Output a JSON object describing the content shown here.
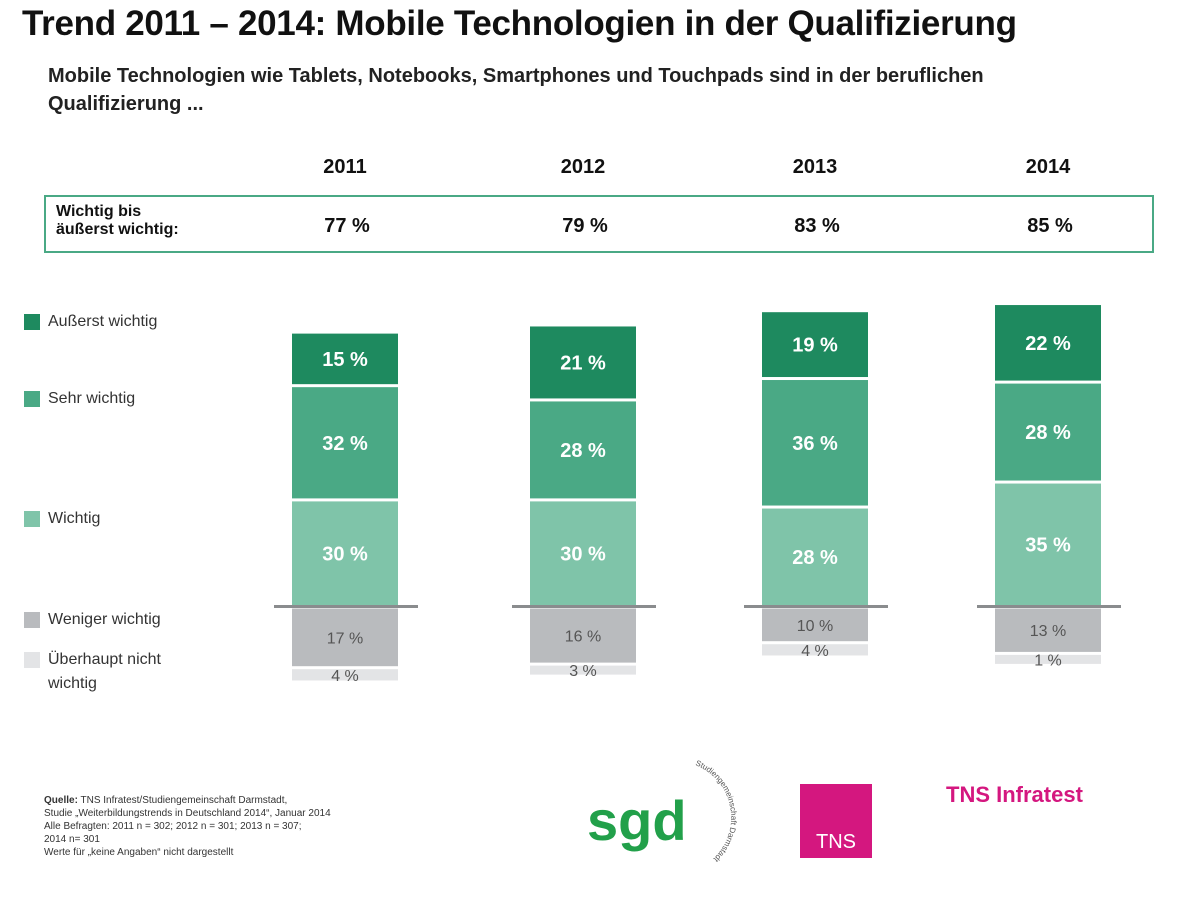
{
  "title": "Trend 2011 – 2014: Mobile Technologien in der Qualifizierung",
  "subtitle": "Mobile Technologien wie Tablets, Notebooks, Smartphones und Touchpads sind in der beruflichen Qualifizierung ...",
  "summary": {
    "label_line1": "Wichtig bis",
    "label_line2": "äußerst wichtig:",
    "values": [
      "77 %",
      "79 %",
      "83 %",
      "85 %"
    ]
  },
  "chart_data": {
    "type": "bar",
    "stacked": true,
    "categories": [
      "2011",
      "2012",
      "2013",
      "2014"
    ],
    "series": [
      {
        "name": "Äußerst wichtig",
        "values": [
          15,
          21,
          19,
          22
        ],
        "color": "#1e8a5f",
        "side": "positive"
      },
      {
        "name": "Sehr wichtig",
        "values": [
          32,
          28,
          36,
          28
        ],
        "color": "#4aa985",
        "side": "positive"
      },
      {
        "name": "Wichtig",
        "values": [
          30,
          30,
          28,
          35
        ],
        "color": "#7fc4a9",
        "side": "positive"
      },
      {
        "name": "Weniger wichtig",
        "values": [
          17,
          16,
          10,
          13
        ],
        "color": "#b9bbbe",
        "side": "negative"
      },
      {
        "name": "Überhaupt nicht wichtig",
        "values": [
          4,
          3,
          4,
          1
        ],
        "color": "#e3e4e6",
        "side": "negative"
      }
    ],
    "unit": "%",
    "legend_placement": "left"
  },
  "legend_labels": [
    "Außerst wichtig",
    "Sehr wichtig",
    "Wichtig",
    "Weniger wichtig",
    "Überhaupt nicht wichtig"
  ],
  "source": {
    "line1_bold": "Quelle:",
    "line1": " TNS Infratest/Studiengemeinschaft Darmstadt,",
    "line2": "Studie „Weiterbildungstrends in Deutschland 2014“, Januar 2014",
    "line3": "Alle Befragten: 2011 n = 302; 2012 n = 301; 2013 n = 307;",
    "line4": "2014 n= 301",
    "line5": "Werte für „keine Angaben“ nicht dargestellt"
  },
  "logos": {
    "sgd": "sgd",
    "sgd_ring": "Studiengemeinschaft Darmstadt",
    "tns_box": "TNS",
    "tns_text": "TNS Infratest"
  }
}
